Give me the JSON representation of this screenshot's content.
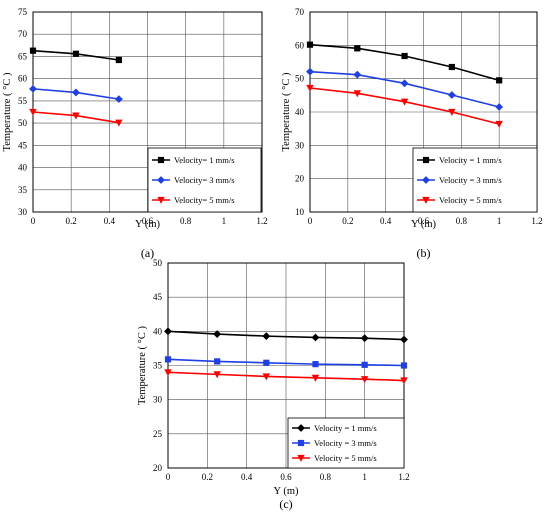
{
  "chart_data": [
    {
      "type": "line",
      "panel_label": "(a)",
      "xlabel": "Y (m)",
      "ylabel": "Temperature ( °C )",
      "xlim": [
        0,
        1.2
      ],
      "ylim": [
        30,
        75
      ],
      "xticks": [
        0,
        0.2,
        0.4,
        0.6,
        0.8,
        1,
        1.2
      ],
      "xtick_labels": [
        "0",
        "0.2",
        "0.4",
        "0.6",
        "0.8",
        "1",
        "1.2"
      ],
      "yticks": [
        30,
        35,
        40,
        45,
        50,
        55,
        60,
        65,
        70,
        75
      ],
      "ytick_labels": [
        "30",
        "35",
        "40",
        "45",
        "50",
        "55",
        "60",
        "65",
        "70",
        "75"
      ],
      "grid": true,
      "legend_position": "bottom-right",
      "series": [
        {
          "name": "Velocity= 1 mm/s",
          "color": "#000000",
          "marker": "square",
          "x": [
            0,
            0.225,
            0.45
          ],
          "y": [
            66.3,
            65.6,
            64.2
          ]
        },
        {
          "name": "Velocity= 3 mm/s",
          "color": "#1f3fe6",
          "marker": "diamond",
          "x": [
            0,
            0.225,
            0.45
          ],
          "y": [
            57.7,
            56.9,
            55.4
          ]
        },
        {
          "name": "Velocity= 5 mm/s",
          "color": "#ff0000",
          "marker": "triangle-down",
          "x": [
            0,
            0.225,
            0.45
          ],
          "y": [
            52.5,
            51.7,
            50.1
          ]
        }
      ]
    },
    {
      "type": "line",
      "panel_label": "(b)",
      "xlabel": "Y (m)",
      "ylabel": "Temperature ( °C )",
      "xlim": [
        0,
        1.2
      ],
      "ylim": [
        10,
        70
      ],
      "xticks": [
        0,
        0.2,
        0.4,
        0.6,
        0.8,
        1,
        1.2
      ],
      "xtick_labels": [
        "0",
        "0.2",
        "0.4",
        "0.6",
        "0.8",
        "1",
        "1.2"
      ],
      "yticks": [
        10,
        20,
        30,
        40,
        50,
        60,
        70
      ],
      "ytick_labels": [
        "10",
        "20",
        "30",
        "40",
        "50",
        "60",
        "70"
      ],
      "grid": true,
      "legend_position": "bottom-right",
      "series": [
        {
          "name": "Velocity = 1 mm/s",
          "color": "#000000",
          "marker": "square",
          "x": [
            0,
            0.25,
            0.5,
            0.75,
            1
          ],
          "y": [
            60.2,
            59.1,
            56.8,
            53.5,
            49.5
          ]
        },
        {
          "name": "Velocity = 3 mm/s",
          "color": "#1f3fe6",
          "marker": "diamond",
          "x": [
            0,
            0.25,
            0.5,
            0.75,
            1
          ],
          "y": [
            52.1,
            51.2,
            48.6,
            45.1,
            41.5
          ]
        },
        {
          "name": "Velocity = 5 mm/s",
          "color": "#ff0000",
          "marker": "triangle-down",
          "x": [
            0,
            0.25,
            0.5,
            0.75,
            1
          ],
          "y": [
            47.2,
            45.6,
            43.1,
            40.0,
            36.4
          ]
        }
      ]
    },
    {
      "type": "line",
      "panel_label": "(c)",
      "xlabel": "Y (m)",
      "ylabel": "Temperature ( °C )",
      "xlim": [
        0,
        1.2
      ],
      "ylim": [
        20,
        50
      ],
      "xticks": [
        0,
        0.2,
        0.4,
        0.6,
        0.8,
        1,
        1.2
      ],
      "xtick_labels": [
        "0",
        "0.2",
        "0.4",
        "0.6",
        "0.8",
        "1",
        "1.2"
      ],
      "yticks": [
        20,
        25,
        30,
        35,
        40,
        45,
        50
      ],
      "ytick_labels": [
        "20",
        "25",
        "30",
        "35",
        "40",
        "45",
        "50"
      ],
      "grid": true,
      "legend_position": "bottom-right",
      "series": [
        {
          "name": "Velocity = 1 mm/s",
          "color": "#000000",
          "marker": "diamond",
          "x": [
            0,
            0.25,
            0.5,
            0.75,
            1,
            1.2
          ],
          "y": [
            40.0,
            39.6,
            39.3,
            39.1,
            39.0,
            38.8
          ]
        },
        {
          "name": "Velocity = 3 mm/s",
          "color": "#1f3fe6",
          "marker": "square",
          "x": [
            0,
            0.25,
            0.5,
            0.75,
            1,
            1.2
          ],
          "y": [
            35.9,
            35.6,
            35.4,
            35.2,
            35.1,
            35.0
          ]
        },
        {
          "name": "Velocity = 5 mm/s",
          "color": "#ff0000",
          "marker": "triangle-down",
          "x": [
            0,
            0.25,
            0.5,
            0.75,
            1,
            1.2
          ],
          "y": [
            34.0,
            33.7,
            33.4,
            33.2,
            33.0,
            32.8
          ]
        }
      ]
    }
  ]
}
